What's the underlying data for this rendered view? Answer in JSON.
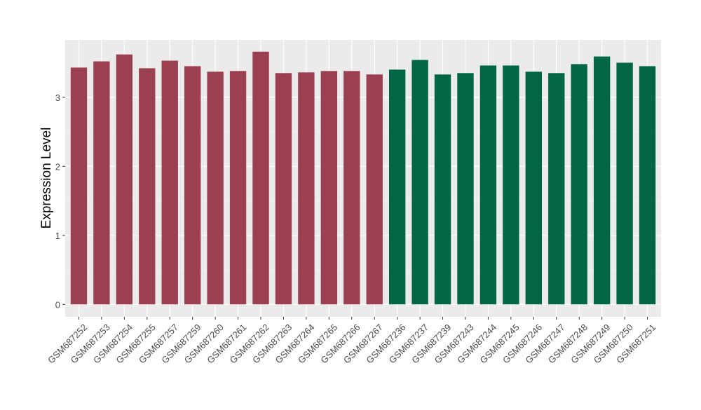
{
  "chart_data": {
    "type": "bar",
    "xlabel": "",
    "ylabel": "Expression Level",
    "ylim": [
      -0.18,
      3.83
    ],
    "yticks": [
      0,
      1,
      2,
      3
    ],
    "grid": true,
    "legend": "none",
    "categories": [
      "GSM687252",
      "GSM687253",
      "GSM687254",
      "GSM687255",
      "GSM687257",
      "GSM687259",
      "GSM687260",
      "GSM687261",
      "GSM687262",
      "GSM687263",
      "GSM687264",
      "GSM687265",
      "GSM687266",
      "GSM687267",
      "GSM687236",
      "GSM687237",
      "GSM687239",
      "GSM687243",
      "GSM687244",
      "GSM687245",
      "GSM687246",
      "GSM687247",
      "GSM687248",
      "GSM687249",
      "GSM687250",
      "GSM687251"
    ],
    "values": [
      3.43,
      3.52,
      3.62,
      3.42,
      3.53,
      3.45,
      3.37,
      3.38,
      3.66,
      3.35,
      3.36,
      3.38,
      3.38,
      3.33,
      3.4,
      3.54,
      3.33,
      3.35,
      3.46,
      3.46,
      3.37,
      3.35,
      3.48,
      3.59,
      3.5,
      3.45
    ],
    "groups": [
      {
        "color": "#9a4050",
        "count": 14
      },
      {
        "color": "#006644",
        "count": 12
      }
    ]
  },
  "colors": {
    "panel_bg": "#ebebeb",
    "grid_major": "#ffffff",
    "grid_minor": "#f5f5f5",
    "text": "#4d4d4d",
    "title_text": "#000000"
  }
}
